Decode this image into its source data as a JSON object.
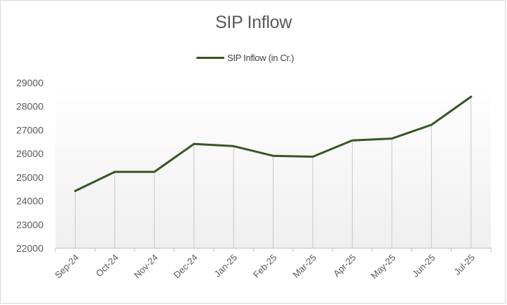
{
  "chart_data": {
    "type": "line",
    "title": "SIP Inflow",
    "categories": [
      "Sep-24",
      "Oct-24",
      "Nov-24",
      "Dec-24",
      "Jan-25",
      "Feb-25",
      "Mar-25",
      "Apr-25",
      "May-25",
      "Jun-25",
      "Jul-25"
    ],
    "series": [
      {
        "name": "SIP Inflow (in Cr.)",
        "values": [
          24420,
          25230,
          25230,
          26410,
          26320,
          25910,
          25870,
          26560,
          26640,
          27220,
          28410
        ],
        "color": "#375623"
      }
    ],
    "ylim": [
      22000,
      29000
    ],
    "yticks": [
      "29000",
      "28000",
      "27000",
      "26000",
      "25000",
      "24000",
      "23000",
      "22000"
    ],
    "legend_position": "top",
    "grid": "vertical drop lines",
    "xlabel": "",
    "ylabel": ""
  }
}
